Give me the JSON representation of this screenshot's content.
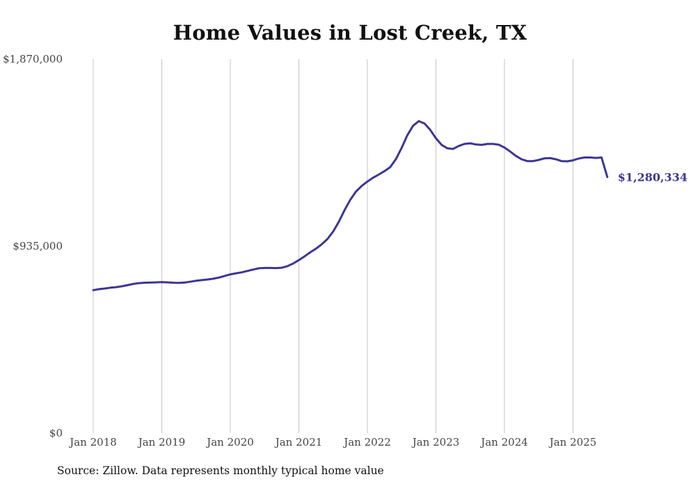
{
  "chart_data": {
    "type": "line",
    "title": "Home Values in Lost Creek, TX",
    "xlabel": "",
    "ylabel": "",
    "ylim": [
      0,
      1870000
    ],
    "yticks": [
      "$0",
      "$935,000",
      "$1,870,000"
    ],
    "ytick_values": [
      0,
      935000,
      1870000
    ],
    "xticks": [
      "Jan 2018",
      "Jan 2019",
      "Jan 2020",
      "Jan 2021",
      "Jan 2022",
      "Jan 2023",
      "Jan 2024",
      "Jan 2025"
    ],
    "xtick_values": [
      "2018-01",
      "2019-01",
      "2020-01",
      "2021-01",
      "2022-01",
      "2023-01",
      "2024-01",
      "2025-01"
    ],
    "grid": "vertical",
    "legend": "none",
    "color": "#3b3696",
    "series": [
      {
        "x": [
          "2018-01",
          "2018-02",
          "2018-03",
          "2018-04",
          "2018-05",
          "2018-06",
          "2018-07",
          "2018-08",
          "2018-09",
          "2018-10",
          "2018-11",
          "2018-12",
          "2019-01",
          "2019-02",
          "2019-03",
          "2019-04",
          "2019-05",
          "2019-06",
          "2019-07",
          "2019-08",
          "2019-09",
          "2019-10",
          "2019-11",
          "2019-12",
          "2020-01",
          "2020-02",
          "2020-03",
          "2020-04",
          "2020-05",
          "2020-06",
          "2020-07",
          "2020-08",
          "2020-09",
          "2020-10",
          "2020-11",
          "2020-12",
          "2021-01",
          "2021-02",
          "2021-03",
          "2021-04",
          "2021-05",
          "2021-06",
          "2021-07",
          "2021-08",
          "2021-09",
          "2021-10",
          "2021-11",
          "2021-12",
          "2022-01",
          "2022-02",
          "2022-03",
          "2022-04",
          "2022-05",
          "2022-06",
          "2022-07",
          "2022-08",
          "2022-09",
          "2022-10",
          "2022-11",
          "2022-12",
          "2023-01",
          "2023-02",
          "2023-03",
          "2023-04",
          "2023-05",
          "2023-06",
          "2023-07",
          "2023-08",
          "2023-09",
          "2023-10",
          "2023-11",
          "2023-12",
          "2024-01",
          "2024-02",
          "2024-03",
          "2024-04",
          "2024-05",
          "2024-06",
          "2024-07",
          "2024-08",
          "2024-09",
          "2024-10",
          "2024-11",
          "2024-12",
          "2025-01",
          "2025-02",
          "2025-03",
          "2025-04",
          "2025-05",
          "2025-06",
          "2025-07"
        ],
        "values": [
          715000,
          720000,
          723000,
          727000,
          730000,
          734000,
          740000,
          746000,
          750000,
          752000,
          753000,
          754000,
          755000,
          754000,
          752000,
          751000,
          753000,
          757000,
          762000,
          765000,
          768000,
          772000,
          778000,
          786000,
          794000,
          799000,
          804000,
          811000,
          818000,
          824000,
          826000,
          826000,
          825000,
          827000,
          835000,
          848000,
          865000,
          884000,
          904000,
          922000,
          944000,
          970000,
          1008000,
          1057000,
          1115000,
          1167000,
          1208000,
          1236000,
          1258000,
          1277000,
          1293000,
          1310000,
          1330000,
          1370000,
          1427000,
          1490000,
          1537000,
          1560000,
          1548000,
          1516000,
          1474000,
          1441000,
          1424000,
          1421000,
          1436000,
          1446000,
          1449000,
          1443000,
          1441000,
          1446000,
          1446000,
          1442000,
          1428000,
          1408000,
          1386000,
          1369000,
          1360000,
          1360000,
          1366000,
          1374000,
          1375000,
          1369000,
          1360000,
          1359000,
          1364000,
          1373000,
          1378000,
          1378000,
          1376000,
          1378000,
          1280334
        ],
        "end_label": "$1,280,334"
      }
    ]
  },
  "source_note": "Source: Zillow. Data represents monthly typical home value"
}
